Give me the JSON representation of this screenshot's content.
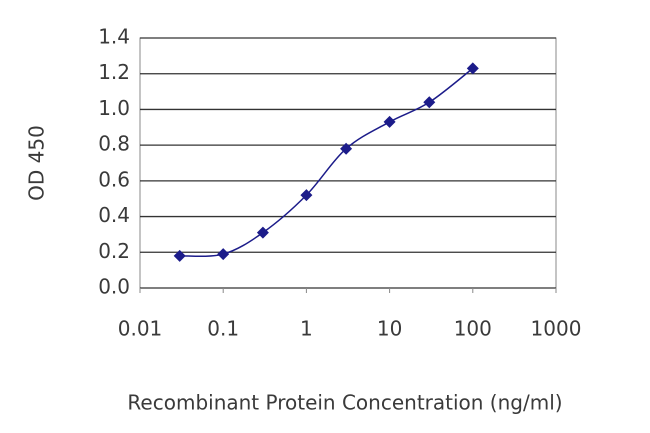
{
  "chart_data": {
    "type": "line",
    "x_label": "Recombinant Protein Concentration (ng/ml)",
    "y_label": "OD 450",
    "x": [
      0.03,
      0.1,
      0.3,
      1,
      3,
      10,
      30,
      100
    ],
    "series": [
      {
        "color": "#1c1c8a",
        "values": [
          0.18,
          0.19,
          0.31,
          0.52,
          0.78,
          0.93,
          1.04,
          1.23
        ]
      }
    ],
    "xscale": "log",
    "xlim": [
      0.01,
      1000
    ],
    "xticks": [
      0.01,
      0.1,
      1,
      10,
      100,
      1000
    ],
    "ylim": [
      0,
      1.4
    ],
    "yticks": [
      {
        "value": 0,
        "label": "0.0"
      },
      0.2,
      0.4,
      0.6,
      0.8,
      {
        "value": 1,
        "label": "1.0"
      },
      1.2,
      1.4
    ],
    "grid": true
  }
}
